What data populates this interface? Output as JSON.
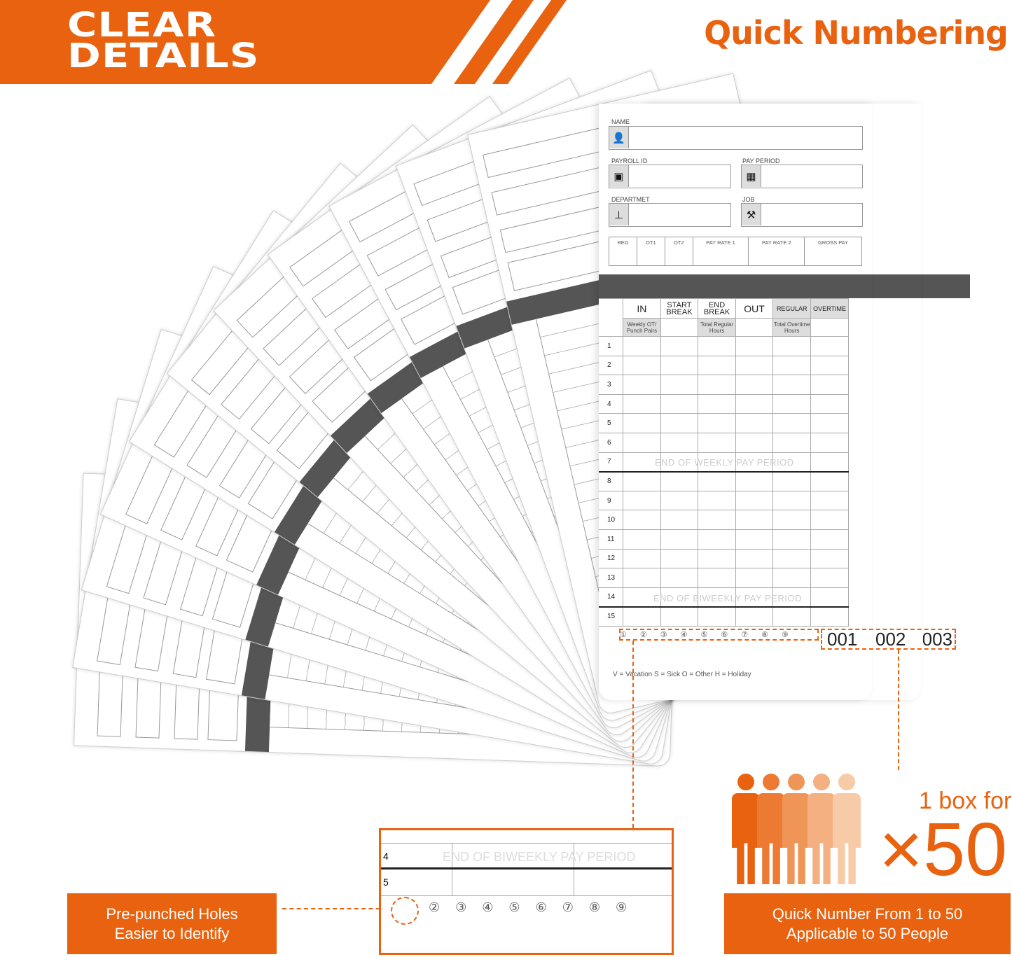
{
  "banner": {
    "title_line1": "CLEAR",
    "title_line2": "DETAILS",
    "right_title": "Quick Numbering"
  },
  "colors": {
    "accent": "#E8620F",
    "band": "#555555"
  },
  "card": {
    "fields": {
      "name": "NAME",
      "payroll_id": "PAYROLL ID",
      "pay_period": "PAY PERIOD",
      "department": "DEPARTMET",
      "job": "JOB"
    },
    "icons": {
      "name": "person-icon",
      "payroll_id": "id-badge-icon",
      "pay_period": "calendar-icon",
      "department": "org-chart-icon",
      "job": "tools-icon"
    },
    "pay_columns": [
      "REG",
      "OT1",
      "OT2",
      "PAY RATE 1",
      "PAY RATE 2",
      "GROSS PAY"
    ],
    "time_headers": [
      "IN",
      "START BREAK",
      "END BREAK",
      "OUT",
      "REGULAR",
      "OVERTIME"
    ],
    "sub_headers": [
      "Weekly OT/ Punch Pairs",
      "",
      "Total Regular Hours",
      "",
      "Total Overtime Hours",
      ""
    ],
    "rows": [
      "1",
      "2",
      "3",
      "4",
      "5",
      "6",
      "7",
      "8",
      "9",
      "10",
      "11",
      "12",
      "13",
      "14",
      "15"
    ],
    "end_weekly": "END OF WEEKLY PAY PERIOD",
    "end_biweekly": "END OF BIWEEKLY PAY PERIOD",
    "holes": [
      "①",
      "②",
      "③",
      "④",
      "⑤",
      "⑥",
      "⑦",
      "⑧",
      "⑨"
    ],
    "legend": "V = Vacation  S = Sick  O = Other  H = Holiday",
    "numbers": [
      "001",
      "002",
      "003"
    ]
  },
  "inset": {
    "rows": [
      "4",
      "5"
    ],
    "end_text": "END OF BIWEEKLY PAY PERIOD",
    "holes": [
      "②",
      "③",
      "④",
      "⑤",
      "⑥",
      "⑦",
      "⑧",
      "⑨"
    ]
  },
  "callouts": {
    "left_line1": "Pre-punched Holes",
    "left_line2": "Easier to Identify",
    "right_line1": "Quick Number From 1 to 50",
    "right_line2": "Applicable to 50 People",
    "box_for": "1 box for",
    "multiplier": "×50"
  }
}
